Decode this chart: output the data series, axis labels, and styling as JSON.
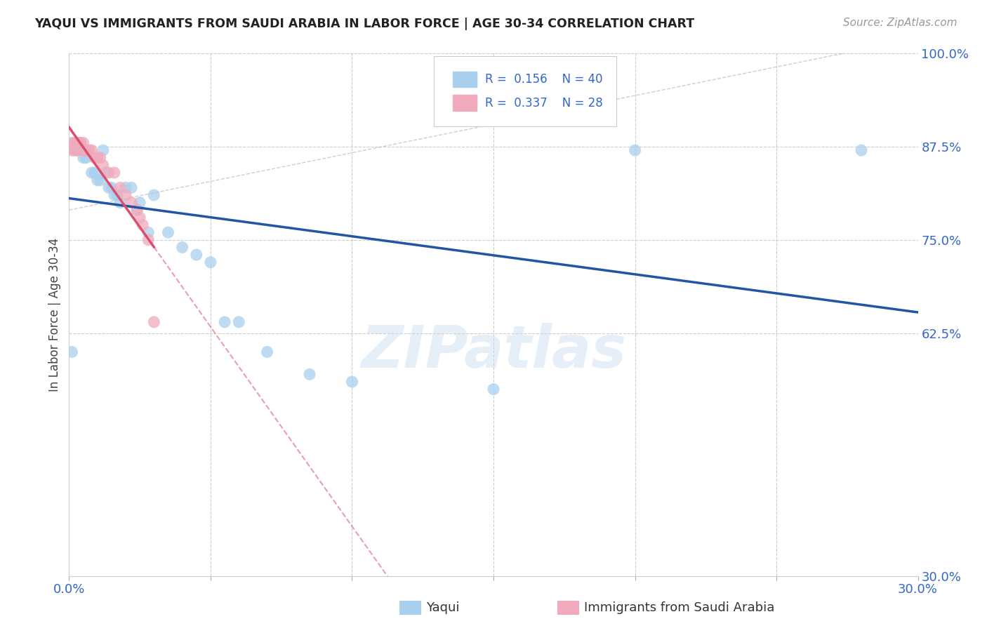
{
  "title": "YAQUI VS IMMIGRANTS FROM SAUDI ARABIA IN LABOR FORCE | AGE 30-34 CORRELATION CHART",
  "source": "Source: ZipAtlas.com",
  "ylabel": "In Labor Force | Age 30-34",
  "legend_label_blue": "Yaqui",
  "legend_label_pink": "Immigrants from Saudi Arabia",
  "R_blue": 0.156,
  "N_blue": 40,
  "R_pink": 0.337,
  "N_pink": 28,
  "xlim": [
    0.0,
    0.3
  ],
  "ylim": [
    0.3,
    1.0
  ],
  "color_blue": "#A8CFEE",
  "color_pink": "#F0AABB",
  "color_line_blue": "#2255A4",
  "color_line_pink": "#D94F6E",
  "watermark_text": "ZIPatlas",
  "blue_x": [
    0.001,
    0.002,
    0.003,
    0.003,
    0.004,
    0.004,
    0.005,
    0.005,
    0.006,
    0.006,
    0.007,
    0.008,
    0.009,
    0.01,
    0.011,
    0.012,
    0.013,
    0.014,
    0.015,
    0.016,
    0.017,
    0.018,
    0.02,
    0.022,
    0.024,
    0.025,
    0.028,
    0.03,
    0.035,
    0.04,
    0.045,
    0.05,
    0.055,
    0.06,
    0.07,
    0.085,
    0.1,
    0.15,
    0.2,
    0.28
  ],
  "blue_y": [
    0.6,
    0.87,
    0.87,
    0.88,
    0.88,
    0.87,
    0.87,
    0.86,
    0.87,
    0.86,
    0.87,
    0.84,
    0.84,
    0.83,
    0.83,
    0.87,
    0.84,
    0.82,
    0.82,
    0.81,
    0.81,
    0.8,
    0.82,
    0.82,
    0.79,
    0.8,
    0.76,
    0.81,
    0.76,
    0.74,
    0.73,
    0.72,
    0.64,
    0.64,
    0.6,
    0.57,
    0.56,
    0.55,
    0.87,
    0.87
  ],
  "pink_x": [
    0.001,
    0.001,
    0.002,
    0.002,
    0.003,
    0.003,
    0.004,
    0.004,
    0.005,
    0.005,
    0.006,
    0.006,
    0.007,
    0.008,
    0.009,
    0.01,
    0.011,
    0.012,
    0.014,
    0.016,
    0.018,
    0.02,
    0.022,
    0.024,
    0.025,
    0.026,
    0.028,
    0.03
  ],
  "pink_y": [
    0.88,
    0.87,
    0.88,
    0.87,
    0.88,
    0.87,
    0.88,
    0.87,
    0.88,
    0.87,
    0.87,
    0.87,
    0.87,
    0.87,
    0.86,
    0.86,
    0.86,
    0.85,
    0.84,
    0.84,
    0.82,
    0.81,
    0.8,
    0.79,
    0.78,
    0.77,
    0.75,
    0.64
  ]
}
